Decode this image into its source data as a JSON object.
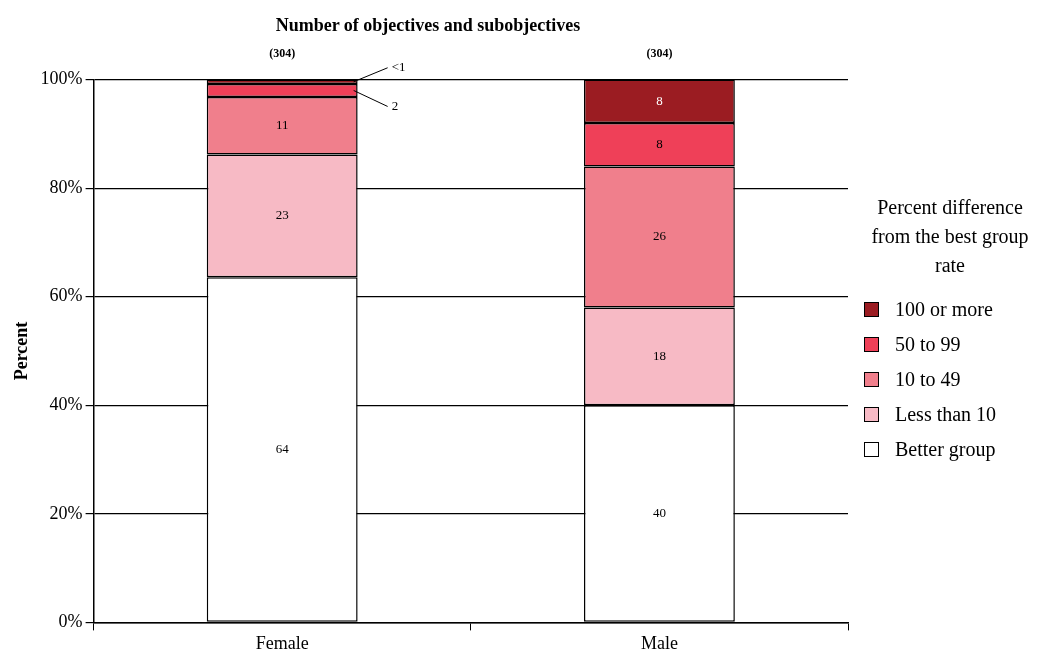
{
  "chart_data": {
    "type": "bar",
    "title": "Number of objectives and subobjectives",
    "ylabel": "Percent",
    "legend_title": "Percent difference from the best group rate",
    "categories": [
      "Female",
      "Male"
    ],
    "stacked": true,
    "series": [
      {
        "name": "Better group",
        "color": "#ffffff",
        "values": [
          63.6,
          40
        ],
        "value_labels": [
          "64",
          "40"
        ]
      },
      {
        "name": "Less than 10",
        "color": "#f7bac5",
        "values": [
          22.6,
          18
        ],
        "value_labels": [
          "23",
          "18"
        ]
      },
      {
        "name": "10 to 49",
        "color": "#f07f8c",
        "values": [
          10.6,
          26
        ],
        "value_labels": [
          "11",
          "26"
        ]
      },
      {
        "name": "50 to 99",
        "color": "#ef4058",
        "values": [
          2.4,
          8
        ],
        "value_labels": [
          "2",
          "8"
        ]
      },
      {
        "name": "100 or more",
        "color": "#9b1c22",
        "values": [
          0.8,
          8
        ],
        "value_labels": [
          "<1",
          "8"
        ]
      }
    ],
    "annotations": [
      {
        "text": "(304)",
        "x": "Female",
        "y": 100
      },
      {
        "text": "(304)",
        "x": "Male",
        "y": 100
      }
    ],
    "ylim": [
      0,
      100
    ],
    "yticks": [
      {
        "value": 0,
        "label": "0%"
      },
      {
        "value": 20,
        "label": "20%"
      },
      {
        "value": 40,
        "label": "40%"
      },
      {
        "value": 60,
        "label": "60%"
      },
      {
        "value": 80,
        "label": "80%"
      },
      {
        "value": 100,
        "label": "100%"
      }
    ],
    "grid": "y",
    "legend": "right"
  }
}
